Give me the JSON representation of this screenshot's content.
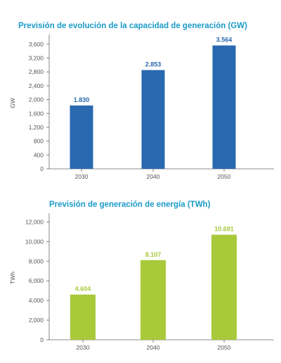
{
  "chart_data": [
    {
      "type": "bar",
      "title": "Previsión de evolución de la capacidad de generación (GW)",
      "ylabel": "GW",
      "xlabel": "",
      "categories": [
        "2030",
        "2040",
        "2050"
      ],
      "values": [
        1830,
        2853,
        3564
      ],
      "data_labels": [
        "1.830",
        "2.853",
        "3.564"
      ],
      "yticks": [
        0,
        400,
        800,
        1200,
        1600,
        2000,
        2400,
        2800,
        3200,
        3600
      ],
      "ytick_labels": [
        "0",
        "400",
        "800",
        "1,200",
        "1,600",
        "2,000",
        "2,400",
        "2,800",
        "3,200",
        "3,600"
      ],
      "ylim": [
        0,
        3800
      ],
      "grid": false,
      "bar_color": "#2869b0",
      "label_color": "#2869b0",
      "title_color": "#1a9bc7"
    },
    {
      "type": "bar",
      "title": "Previsión de generación de energía (TWh)",
      "ylabel": "TWh",
      "xlabel": "",
      "categories": [
        "2030",
        "2040",
        "2050"
      ],
      "values": [
        4604,
        8107,
        10691
      ],
      "data_labels": [
        "4.604",
        "8.107",
        "10.691"
      ],
      "yticks": [
        0,
        2000,
        4000,
        6000,
        8000,
        10000,
        12000
      ],
      "ytick_labels": [
        "0",
        "2,000",
        "4,000",
        "6,000",
        "8,000",
        "10,000",
        "12,000"
      ],
      "ylim": [
        0,
        12600
      ],
      "grid": false,
      "bar_color": "#a8c93a",
      "label_color": "#a8c93a",
      "title_color": "#1a9bc7"
    }
  ]
}
